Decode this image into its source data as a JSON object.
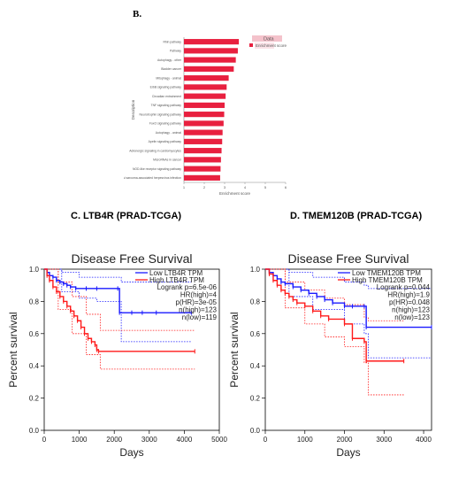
{
  "panel_b": {
    "letter": "B."
  },
  "panel_c": {
    "title": "C. LTB4R (PRAD-TCGA)"
  },
  "panel_d": {
    "title": "D. TMEM120B (PRAD-TCGA)"
  },
  "colors": {
    "bar": "#e8203f",
    "low": "#1a1aff",
    "high": "#ff1a1a"
  },
  "chart_data": [
    {
      "type": "bar",
      "orientation": "horizontal",
      "categories": [
        "Rhin pathway",
        "Pathway",
        "Autophagy - other",
        "Bladder cancer",
        "Mitophagy - animal",
        "ErbB signaling pathway",
        "Circadian entrainment",
        "TNF signaling pathway",
        "Neurotrophin signaling pathway",
        "FoxO signaling pathway",
        "Autophagy - animal",
        "Apelin signaling pathway",
        "Adrenergic signaling in cardiomyocytes",
        "MicroRNAs in cancer",
        "NOD-like receptor signaling pathway",
        "Kaposi sarcoma-associated herpesvirus infection"
      ],
      "values": [
        3.7,
        3.65,
        3.55,
        3.45,
        3.2,
        3.1,
        3.05,
        3.0,
        2.98,
        2.95,
        2.9,
        2.88,
        2.85,
        2.82,
        2.8,
        2.78
      ],
      "xlabel": "Enrichment score",
      "ylabel": "Description",
      "xlim": [
        1,
        6
      ],
      "xticks": [
        "1",
        "2",
        "3",
        "4",
        "5",
        "6"
      ],
      "legend": [
        "Data",
        "Enrichment score"
      ],
      "legend_position": "top-right"
    },
    {
      "type": "line",
      "title": "Disease Free Survival",
      "xlabel": "Days",
      "ylabel": "Percent survival",
      "xlim": [
        0,
        5000
      ],
      "ylim": [
        0,
        1
      ],
      "xticks": [
        "0",
        "1000",
        "2000",
        "3000",
        "4000",
        "5000"
      ],
      "yticks": [
        "0.0",
        "0.2",
        "0.4",
        "0.6",
        "0.8",
        "1.0"
      ],
      "legend": [
        "Low LTB4R TPM",
        "High LTB4R TPM"
      ],
      "stats": [
        "Logrank p=6.5e-06",
        "HR(high)=4",
        "p(HR)=3e-05",
        "n(high)=123",
        "n(low)=119"
      ],
      "series": [
        {
          "name": "Low LTB4R TPM",
          "x": [
            0,
            80,
            150,
            250,
            350,
            450,
            550,
            650,
            750,
            900,
            1200,
            1500,
            2100,
            2150,
            2500,
            2800,
            3200,
            4200
          ],
          "y": [
            1,
            0.98,
            0.96,
            0.95,
            0.93,
            0.92,
            0.91,
            0.9,
            0.89,
            0.88,
            0.88,
            0.88,
            0.88,
            0.73,
            0.73,
            0.73,
            0.73,
            0.73
          ]
        },
        {
          "name": "High LTB4R TPM",
          "x": [
            0,
            80,
            150,
            250,
            350,
            450,
            550,
            650,
            750,
            850,
            950,
            1050,
            1150,
            1250,
            1350,
            1450,
            1500,
            1550,
            4300
          ],
          "y": [
            1,
            0.96,
            0.93,
            0.89,
            0.86,
            0.83,
            0.8,
            0.77,
            0.74,
            0.71,
            0.68,
            0.64,
            0.6,
            0.57,
            0.55,
            0.53,
            0.5,
            0.49,
            0.49
          ]
        }
      ],
      "ci": [
        {
          "series": "Low LTB4R TPM",
          "x": [
            0,
            500,
            1000,
            1500,
            2100,
            2200,
            4200
          ],
          "upper": [
            1,
            0.98,
            0.95,
            0.95,
            0.95,
            0.92,
            0.92
          ],
          "lower": [
            1,
            0.86,
            0.82,
            0.8,
            0.8,
            0.55,
            0.55
          ]
        },
        {
          "series": "High LTB4R TPM",
          "x": [
            0,
            400,
            800,
            1200,
            1600,
            4300
          ],
          "upper": [
            1,
            0.92,
            0.83,
            0.72,
            0.62,
            0.62
          ],
          "lower": [
            1,
            0.75,
            0.6,
            0.47,
            0.38,
            0.38
          ]
        }
      ]
    },
    {
      "type": "line",
      "title": "Disease Free Survival",
      "xlabel": "Days",
      "ylabel": "Percent survival",
      "xlim": [
        0,
        4200
      ],
      "ylim": [
        0,
        1
      ],
      "xticks": [
        "0",
        "1000",
        "2000",
        "3000",
        "4000"
      ],
      "yticks": [
        "0.0",
        "0.2",
        "0.4",
        "0.6",
        "0.8",
        "1.0"
      ],
      "legend": [
        "Low TMEM120B TPM",
        "High TMEM120B TPM"
      ],
      "stats": [
        "Logrank p=0.044",
        "HR(high)=1.9",
        "p(HR)=0.048",
        "n(high)=123",
        "n(low)=123"
      ],
      "series": [
        {
          "name": "Low TMEM120B TPM",
          "x": [
            0,
            100,
            200,
            300,
            400,
            500,
            700,
            900,
            1100,
            1300,
            1500,
            1700,
            2000,
            2200,
            2500,
            2550,
            4200
          ],
          "y": [
            1,
            0.98,
            0.96,
            0.94,
            0.92,
            0.91,
            0.89,
            0.87,
            0.85,
            0.83,
            0.81,
            0.79,
            0.77,
            0.77,
            0.77,
            0.64,
            0.64
          ]
        },
        {
          "name": "High TMEM120B TPM",
          "x": [
            0,
            100,
            200,
            300,
            400,
            500,
            600,
            700,
            800,
            1000,
            1200,
            1400,
            1600,
            2000,
            2200,
            2500,
            2550,
            3500
          ],
          "y": [
            1,
            0.97,
            0.93,
            0.9,
            0.87,
            0.85,
            0.83,
            0.81,
            0.79,
            0.77,
            0.74,
            0.71,
            0.69,
            0.66,
            0.57,
            0.55,
            0.43,
            0.43
          ]
        }
      ],
      "ci": [
        {
          "series": "Low TMEM120B TPM",
          "x": [
            0,
            600,
            1200,
            2000,
            2500,
            2600,
            4200
          ],
          "upper": [
            1,
            0.98,
            0.95,
            0.92,
            0.9,
            0.88,
            0.88
          ],
          "lower": [
            1,
            0.83,
            0.75,
            0.66,
            0.6,
            0.45,
            0.45
          ]
        },
        {
          "series": "High TMEM120B TPM",
          "x": [
            0,
            500,
            1000,
            1500,
            2000,
            2500,
            2600,
            3500
          ],
          "upper": [
            1,
            0.92,
            0.87,
            0.82,
            0.78,
            0.7,
            0.68,
            0.68
          ],
          "lower": [
            1,
            0.76,
            0.66,
            0.58,
            0.52,
            0.42,
            0.22,
            0.22
          ]
        }
      ]
    }
  ]
}
